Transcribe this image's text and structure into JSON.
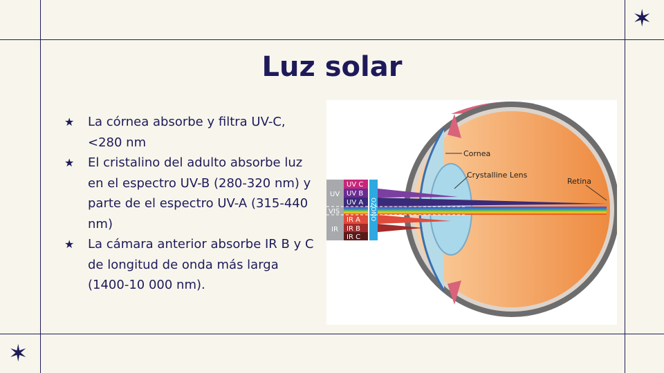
{
  "title": "Luz solar",
  "bullets": [
    "La córnea absorbe y filtra UV-C, <280 nm",
    "El cristalino del adulto absorbe luz en el espectro UV-B (280-320 nm) y parte de el espectro UV-A (315-440 nm)",
    "La cámara anterior absorbe IR B y C de longitud de onda más larga (1400-10 000 nm)."
  ],
  "bullet_icon": "star-icon",
  "diagram": {
    "labels": {
      "cornea": "Cornea",
      "lens": "Crystalline Lens",
      "retina": "Retina",
      "ozone": "OZONO"
    },
    "groups": [
      "UV",
      "VIS",
      "IR"
    ],
    "bands": [
      "UV C",
      "UV B",
      "UV A",
      "IR A",
      "IR B",
      "IR C"
    ]
  },
  "colors": {
    "accent": "#1e1a5a",
    "background": "#f8f6ec"
  }
}
